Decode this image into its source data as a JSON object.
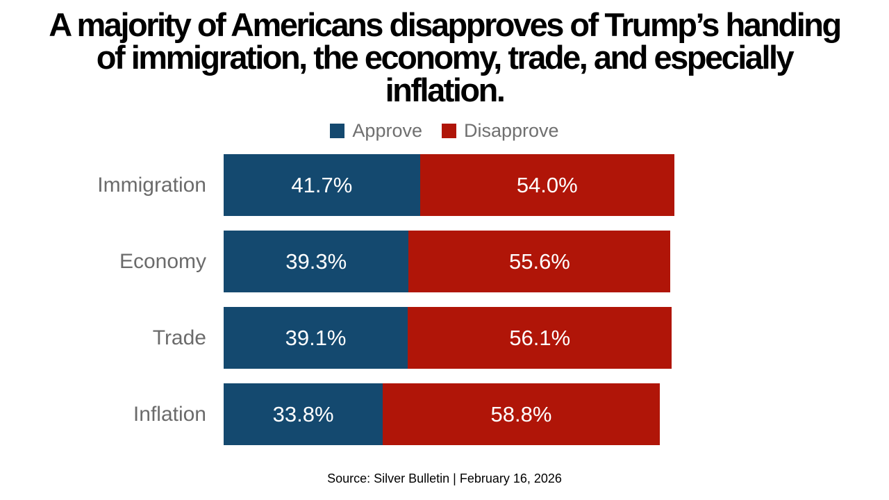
{
  "title_lines": [
    "A majority of Americans disapproves of Trump’s handing",
    "of immigration, the economy, trade, and especially",
    "inflation."
  ],
  "legend": {
    "approve_label": "Approve",
    "disapprove_label": "Disapprove"
  },
  "colors": {
    "approve": "#14496F",
    "disapprove": "#B01508",
    "label_gray": "#6B6B6B"
  },
  "source": "Source: Silver Bulletin | February 16, 2026",
  "chart_data": {
    "type": "bar",
    "orientation": "horizontal",
    "stacked": true,
    "title": "A majority of Americans disapproves of Trump’s handing of immigration, the economy, trade, and especially inflation.",
    "categories": [
      "Immigration",
      "Economy",
      "Trade",
      "Inflation"
    ],
    "series": [
      {
        "name": "Approve",
        "color": "#14496F",
        "values": [
          41.7,
          39.3,
          39.1,
          33.8
        ]
      },
      {
        "name": "Disapprove",
        "color": "#B01508",
        "values": [
          54.0,
          55.6,
          56.1,
          58.8
        ]
      }
    ],
    "value_labels": {
      "approve": [
        "41.7%",
        "39.3%",
        "39.1%",
        "33.8%"
      ],
      "disapprove": [
        "54.0%",
        "55.6%",
        "56.1%",
        "58.8%"
      ]
    },
    "xlim": [
      0,
      100
    ],
    "grid": false,
    "legend_position": "top",
    "source": "Source: Silver Bulletin | February 16, 2026"
  }
}
